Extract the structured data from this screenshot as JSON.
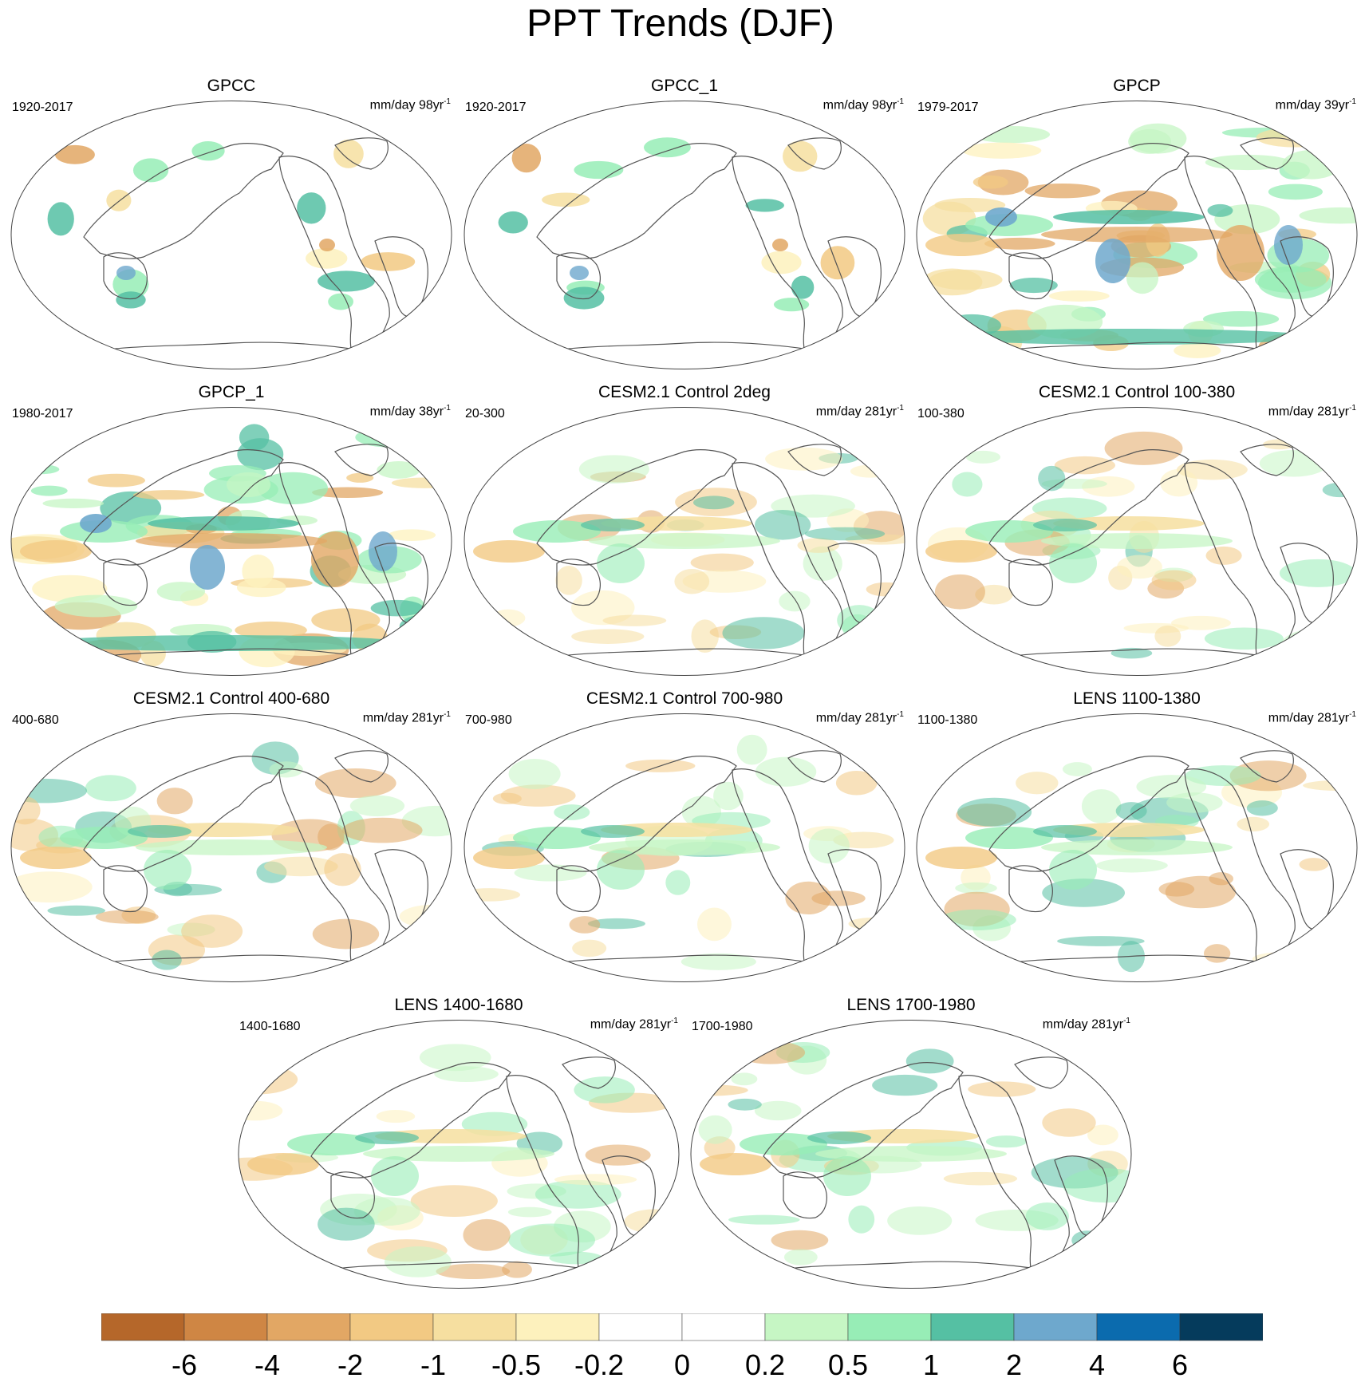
{
  "title": "PPT Trends (DJF)",
  "units_text": "mm/day ",
  "panels": [
    {
      "name": "GPCC",
      "period": "1920-2017",
      "units_years": "98yr",
      "units_exp": "-1",
      "style": "land"
    },
    {
      "name": "GPCC_1",
      "period": "1920-2017",
      "units_years": "98yr",
      "units_exp": "-1",
      "style": "land"
    },
    {
      "name": "GPCP",
      "period": "1979-2017",
      "units_years": "39yr",
      "units_exp": "-1",
      "style": "obs"
    },
    {
      "name": "GPCP_1",
      "period": "1980-2017",
      "units_years": "38yr",
      "units_exp": "-1",
      "style": "obs"
    },
    {
      "name": "CESM2.1 Control 2deg",
      "period": "20-300",
      "units_years": "281yr",
      "units_exp": "-1",
      "style": "model"
    },
    {
      "name": "CESM2.1 Control 100-380",
      "period": "100-380",
      "units_years": "281yr",
      "units_exp": "-1",
      "style": "model"
    },
    {
      "name": "CESM2.1 Control 400-680",
      "period": "400-680",
      "units_years": "281yr",
      "units_exp": "-1",
      "style": "model"
    },
    {
      "name": "CESM2.1 Control 700-980",
      "period": "700-980",
      "units_years": "281yr",
      "units_exp": "-1",
      "style": "model"
    },
    {
      "name": "LENS 1100-1380",
      "period": "1100-1380",
      "units_years": "281yr",
      "units_exp": "-1",
      "style": "model"
    },
    {
      "name": "LENS 1400-1680",
      "period": "1400-1680",
      "units_years": "281yr",
      "units_exp": "-1",
      "style": "model"
    },
    {
      "name": "LENS 1700-1980",
      "period": "1700-1980",
      "units_years": "281yr",
      "units_exp": "-1",
      "style": "model"
    }
  ],
  "colorbar": {
    "colors": [
      "#b5672a",
      "#cf8644",
      "#e2a764",
      "#f2c983",
      "#f6dfa0",
      "#fdf1bd",
      "#ffffff",
      "#ffffff",
      "#c6f6c4",
      "#97edb6",
      "#55c0a3",
      "#6ea8cd",
      "#0b6bae",
      "#053b5c"
    ],
    "labels": [
      "-6",
      "-4",
      "-2",
      "-1",
      "-0.5",
      "-0.2",
      "0",
      "0.2",
      "0.5",
      "1",
      "2",
      "4",
      "6"
    ]
  }
}
